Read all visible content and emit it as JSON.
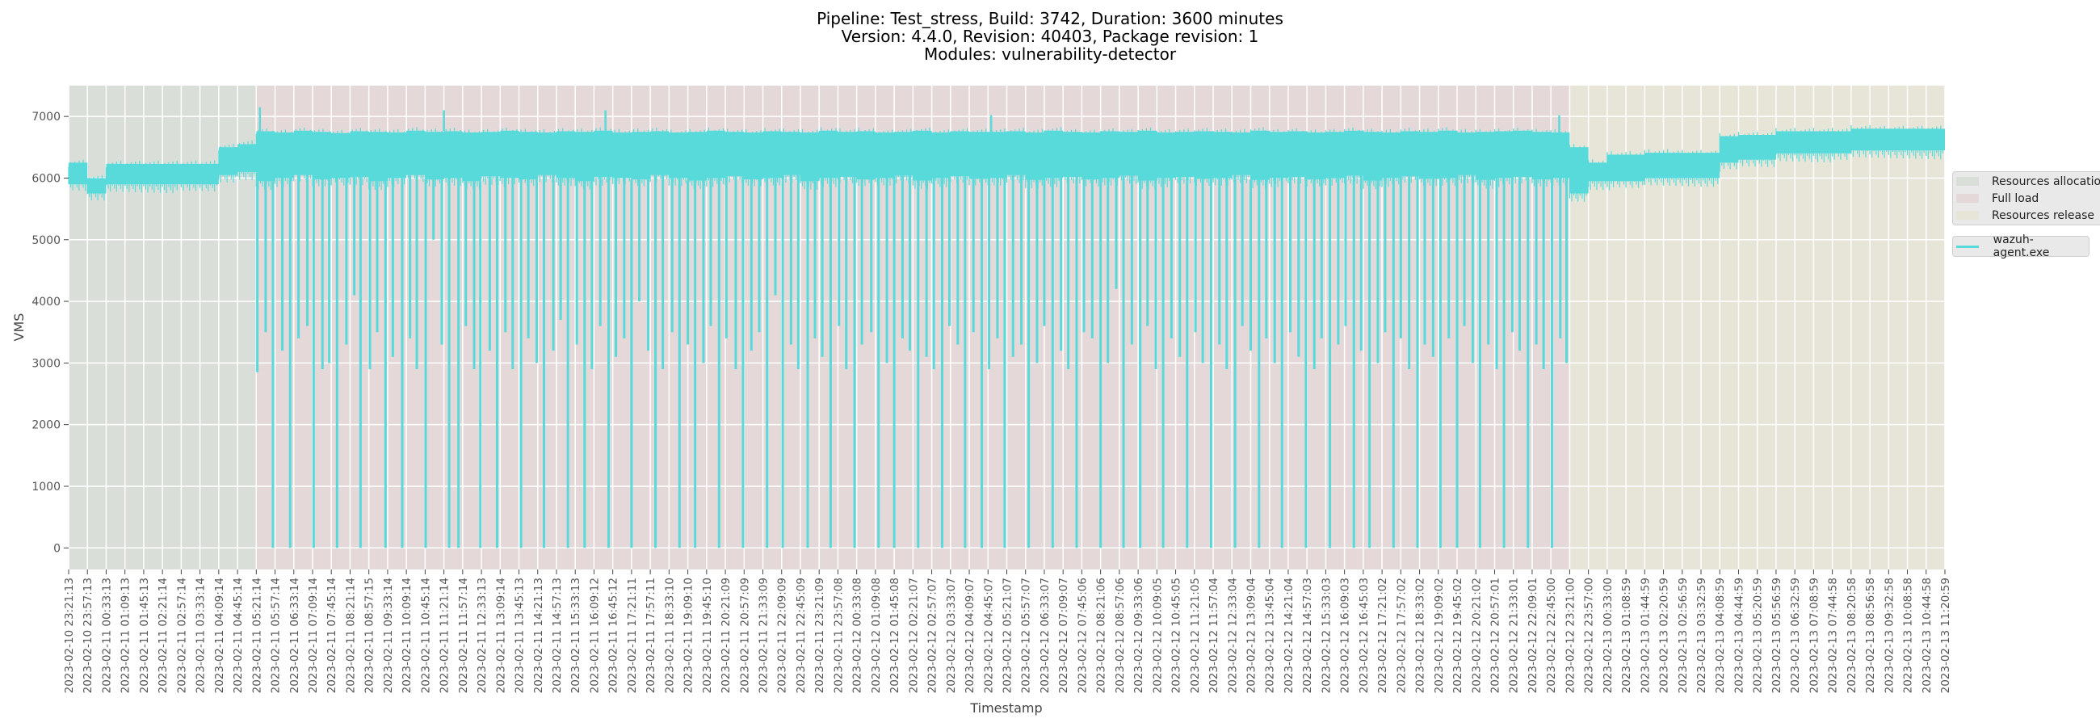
{
  "chart_data": {
    "type": "line",
    "title_lines": [
      "Pipeline: Test_stress, Build: 3742, Duration: 3600 minutes",
      "Version: 4.4.0, Revision: 40403, Package revision: 1",
      "Modules: vulnerability-detector"
    ],
    "xlabel": "Timestamp",
    "ylabel": "VMS",
    "ylim": [
      -350,
      7500
    ],
    "xlim_minutes": [
      0,
      3600
    ],
    "grid": true,
    "y_ticks": [
      0,
      1000,
      2000,
      3000,
      4000,
      5000,
      6000,
      7000
    ],
    "x_tick_interval_minutes": 36,
    "x_tick_labels": [
      "2023-02-10 23:21:13",
      "2023-02-10 23:57:13",
      "2023-02-11 00:33:13",
      "2023-02-11 01:09:13",
      "2023-02-11 01:45:13",
      "2023-02-11 02:21:14",
      "2023-02-11 02:57:14",
      "2023-02-11 03:33:14",
      "2023-02-11 04:09:14",
      "2023-02-11 04:45:14",
      "2023-02-11 05:21:14",
      "2023-02-11 05:57:14",
      "2023-02-11 06:33:14",
      "2023-02-11 07:09:14",
      "2023-02-11 07:45:14",
      "2023-02-11 08:21:14",
      "2023-02-11 08:57:15",
      "2023-02-11 09:33:14",
      "2023-02-11 10:09:14",
      "2023-02-11 10:45:14",
      "2023-02-11 11:21:14",
      "2023-02-11 11:57:14",
      "2023-02-11 12:33:13",
      "2023-02-11 13:09:14",
      "2023-02-11 13:45:13",
      "2023-02-11 14:21:13",
      "2023-02-11 14:57:13",
      "2023-02-11 15:33:13",
      "2023-02-11 16:09:12",
      "2023-02-11 16:45:12",
      "2023-02-11 17:21:11",
      "2023-02-11 17:57:11",
      "2023-02-11 18:33:10",
      "2023-02-11 19:09:10",
      "2023-02-11 19:45:10",
      "2023-02-11 20:21:09",
      "2023-02-11 20:57:09",
      "2023-02-11 21:33:09",
      "2023-02-11 22:09:09",
      "2023-02-11 22:45:09",
      "2023-02-11 23:21:09",
      "2023-02-11 23:57:08",
      "2023-02-12 00:33:08",
      "2023-02-12 01:09:08",
      "2023-02-12 01:45:08",
      "2023-02-12 02:21:07",
      "2023-02-12 02:57:07",
      "2023-02-12 03:33:07",
      "2023-02-12 04:09:07",
      "2023-02-12 04:45:07",
      "2023-02-12 05:21:07",
      "2023-02-12 05:57:07",
      "2023-02-12 06:33:07",
      "2023-02-12 07:09:07",
      "2023-02-12 07:45:06",
      "2023-02-12 08:21:06",
      "2023-02-12 08:57:06",
      "2023-02-12 09:33:06",
      "2023-02-12 10:09:05",
      "2023-02-12 10:45:05",
      "2023-02-12 11:21:05",
      "2023-02-12 11:57:04",
      "2023-02-12 12:33:04",
      "2023-02-12 13:09:04",
      "2023-02-12 13:45:04",
      "2023-02-12 14:21:04",
      "2023-02-12 14:57:03",
      "2023-02-12 15:33:03",
      "2023-02-12 16:09:03",
      "2023-02-12 16:45:03",
      "2023-02-12 17:21:02",
      "2023-02-12 17:57:02",
      "2023-02-12 18:33:02",
      "2023-02-12 19:09:02",
      "2023-02-12 19:45:02",
      "2023-02-12 20:21:02",
      "2023-02-12 20:57:01",
      "2023-02-12 21:33:01",
      "2023-02-12 22:09:01",
      "2023-02-12 22:45:00",
      "2023-02-12 23:21:00",
      "2023-02-12 23:57:00",
      "2023-02-13 00:33:00",
      "2023-02-13 01:08:59",
      "2023-02-13 01:44:59",
      "2023-02-13 02:20:59",
      "2023-02-13 02:56:59",
      "2023-02-13 03:32:59",
      "2023-02-13 04:08:59",
      "2023-02-13 04:44:59",
      "2023-02-13 05:20:59",
      "2023-02-13 05:56:59",
      "2023-02-13 06:32:59",
      "2023-02-13 07:08:59",
      "2023-02-13 07:44:58",
      "2023-02-13 08:20:58",
      "2023-02-13 08:56:58",
      "2023-02-13 09:32:58",
      "2023-02-13 10:08:58",
      "2023-02-13 10:44:58",
      "2023-02-13 11:20:59"
    ],
    "phases": [
      {
        "name": "Resources allocation",
        "start_minute": 0,
        "end_minute": 360,
        "color": "#d9dfd8"
      },
      {
        "name": "Full load",
        "start_minute": 360,
        "end_minute": 2880,
        "color": "#e5d8d8"
      },
      {
        "name": "Resources release",
        "start_minute": 2880,
        "end_minute": 3600,
        "color": "#e6e5d8"
      }
    ],
    "series": [
      {
        "name": "wazuh-agent.exe",
        "color": "#58dada",
        "band_interval_minutes": 36,
        "band_upper": [
          6250,
          6000,
          6230,
          6230,
          6230,
          6230,
          6230,
          6230,
          6500,
          6550,
          6760,
          6740,
          6770,
          6750,
          6730,
          6760,
          6750,
          6740,
          6770,
          6750,
          6760,
          6740,
          6750,
          6770,
          6750,
          6740,
          6760,
          6750,
          6770,
          6740,
          6750,
          6760,
          6740,
          6750,
          6770,
          6750,
          6740,
          6760,
          6750,
          6740,
          6770,
          6750,
          6760,
          6740,
          6750,
          6770,
          6740,
          6760,
          6750,
          6750,
          6760,
          6740,
          6770,
          6750,
          6740,
          6760,
          6750,
          6770,
          6740,
          6750,
          6760,
          6750,
          6740,
          6770,
          6750,
          6760,
          6740,
          6750,
          6770,
          6750,
          6740,
          6760,
          6750,
          6770,
          6740,
          6750,
          6760,
          6770,
          6750,
          6740,
          6500,
          6250,
          6380,
          6380,
          6410,
          6410,
          6410,
          6410,
          6680,
          6700,
          6700,
          6760,
          6760,
          6760,
          6760,
          6800,
          6800,
          6800,
          6800,
          6800
        ],
        "band_lower": [
          5900,
          5750,
          5900,
          5900,
          5900,
          5900,
          5900,
          5900,
          6050,
          6100,
          5950,
          6000,
          6050,
          5980,
          6000,
          6020,
          5950,
          6000,
          6050,
          5980,
          6000,
          5950,
          6030,
          6000,
          5980,
          6050,
          6000,
          5950,
          6020,
          6000,
          5980,
          6050,
          6000,
          5960,
          6000,
          6030,
          5980,
          6000,
          6050,
          5950,
          6000,
          6020,
          5980,
          6000,
          6040,
          5960,
          6000,
          6030,
          5990,
          6000,
          6050,
          5970,
          6000,
          6020,
          5980,
          6000,
          6040,
          5960,
          6000,
          6020,
          5990,
          6000,
          6050,
          5970,
          6000,
          6020,
          5980,
          6000,
          6040,
          5960,
          6000,
          6030,
          5990,
          6000,
          6050,
          5970,
          6000,
          6020,
          5980,
          6000,
          5750,
          5950,
          5950,
          5950,
          6000,
          6000,
          6000,
          6000,
          6250,
          6300,
          6300,
          6400,
          6400,
          6400,
          6400,
          6450,
          6450,
          6450,
          6450,
          6450
        ],
        "dip_minutes": [
          362,
          378,
          392,
          410,
          425,
          441,
          458,
          470,
          487,
          500,
          515,
          533,
          548,
          560,
          578,
          592,
          608,
          622,
          640,
          655,
          668,
          685,
          700,
          716,
          730,
          748,
          762,
          778,
          790,
          808,
          822,
          838,
          852,
          868,
          882,
          898,
          912,
          930,
          944,
          958,
          975,
          990,
          1004,
          1020,
          1036,
          1050,
          1066,
          1080,
          1095,
          1112,
          1126,
          1140,
          1158,
          1172,
          1188,
          1202,
          1218,
          1232,
          1248,
          1262,
          1280,
          1294,
          1310,
          1325,
          1340,
          1356,
          1370,
          1386,
          1400,
          1418,
          1432,
          1446,
          1462,
          1478,
          1492,
          1508,
          1522,
          1540,
          1554,
          1570,
          1584,
          1600,
          1614,
          1630,
          1646,
          1660,
          1676,
          1690,
          1706,
          1720,
          1736,
          1752,
          1766,
          1782,
          1796,
          1812,
          1828,
          1842,
          1858,
          1872,
          1888,
          1904,
          1918,
          1934,
          1948,
          1964,
          1980,
          1994,
          2010,
          2024,
          2040,
          2056,
          2070,
          2086,
          2100,
          2116,
          2132,
          2146,
          2162,
          2176,
          2192,
          2208,
          2222,
          2238,
          2252,
          2268,
          2284,
          2298,
          2314,
          2328,
          2344,
          2360,
          2374,
          2390,
          2404,
          2420,
          2436,
          2450,
          2466,
          2480,
          2496,
          2512,
          2526,
          2542,
          2556,
          2572,
          2588,
          2602,
          2618,
          2632,
          2648,
          2664,
          2678,
          2694,
          2708,
          2724,
          2740,
          2754,
          2770,
          2784,
          2800,
          2816,
          2830,
          2846,
          2862,
          2874
        ],
        "dip_values": [
          2850,
          3500,
          0,
          3200,
          0,
          3400,
          3600,
          0,
          2900,
          3000,
          0,
          3300,
          4100,
          0,
          2900,
          3500,
          0,
          3100,
          0,
          3400,
          2900,
          0,
          5000,
          3300,
          0,
          0,
          3600,
          2900,
          0,
          3200,
          0,
          3500,
          2900,
          0,
          3400,
          3000,
          0,
          3200,
          3700,
          0,
          3300,
          0,
          2900,
          3600,
          0,
          3100,
          3400,
          0,
          4000,
          3200,
          0,
          2900,
          3500,
          0,
          3300,
          0,
          3000,
          3600,
          0,
          3400,
          2900,
          0,
          3200,
          3500,
          0,
          4100,
          0,
          3300,
          2900,
          0,
          3400,
          3100,
          0,
          3600,
          2900,
          0,
          3300,
          3500,
          0,
          3000,
          0,
          3400,
          3200,
          0,
          3100,
          2900,
          0,
          3600,
          3300,
          0,
          3500,
          0,
          2900,
          3400,
          0,
          3100,
          3300,
          0,
          3000,
          3600,
          0,
          3200,
          2900,
          0,
          3500,
          3400,
          0,
          3000,
          4200,
          0,
          3300,
          0,
          3600,
          2900,
          0,
          3400,
          3100,
          0,
          3500,
          3000,
          0,
          3300,
          2900,
          0,
          3600,
          3200,
          0,
          3400,
          3000,
          0,
          3500,
          3100,
          0,
          2900,
          3400,
          0,
          3300,
          3600,
          0,
          3200,
          0,
          3000,
          3500,
          0,
          3400,
          2900,
          0,
          3300,
          3100,
          0,
          3400,
          0,
          3600,
          3000,
          0,
          3300,
          2900,
          0,
          3500,
          3200,
          0,
          3300,
          2900,
          0,
          3400,
          3000
        ],
        "spike_minutes": [
          367,
          720,
          1030,
          1770,
          2860
        ],
        "spike_values": [
          7150,
          7100,
          7100,
          7020,
          7020
        ]
      }
    ],
    "legend": {
      "placement": "right",
      "phase_entries": [
        "Resources allocation",
        "Full load",
        "Resources release"
      ],
      "series_entries": [
        "wazuh-agent.exe"
      ]
    }
  }
}
